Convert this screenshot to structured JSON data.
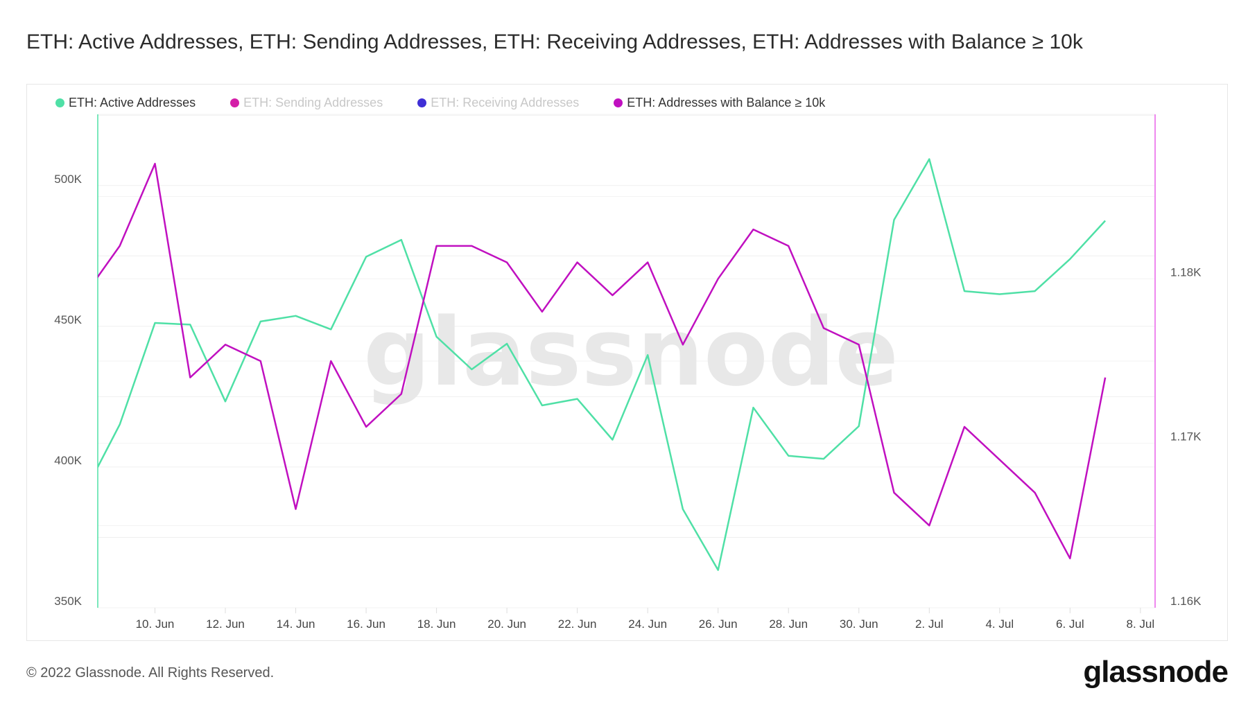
{
  "chart_data": {
    "type": "line",
    "title": "ETH: Active Addresses, ETH: Sending Addresses, ETH: Receiving Addresses, ETH: Addresses with Balance ≥ 10k",
    "legend_position": "top-left",
    "legend": [
      {
        "name": "ETH: Active Addresses",
        "color": "#4fe0a6",
        "visible": true
      },
      {
        "name": "ETH: Sending Addresses",
        "color": "#d41fa8",
        "visible": false
      },
      {
        "name": "ETH: Receiving Addresses",
        "color": "#3f2fd6",
        "visible": false
      },
      {
        "name": "ETH: Addresses with Balance ≥ 10k",
        "color": "#c010c0",
        "visible": true
      }
    ],
    "x": [
      "2022-06-08",
      "2022-06-09",
      "2022-06-10",
      "2022-06-11",
      "2022-06-12",
      "2022-06-13",
      "2022-06-14",
      "2022-06-15",
      "2022-06-16",
      "2022-06-17",
      "2022-06-18",
      "2022-06-19",
      "2022-06-20",
      "2022-06-21",
      "2022-06-22",
      "2022-06-23",
      "2022-06-24",
      "2022-06-25",
      "2022-06-26",
      "2022-06-27",
      "2022-06-28",
      "2022-06-29",
      "2022-06-30",
      "2022-07-01",
      "2022-07-02",
      "2022-07-03",
      "2022-07-04",
      "2022-07-05",
      "2022-07-06",
      "2022-07-07"
    ],
    "xlim": [
      "2022-06-08T09:00",
      "2022-07-08T10:00"
    ],
    "x_ticks": [
      "10. Jun",
      "12. Jun",
      "14. Jun",
      "16. Jun",
      "18. Jun",
      "20. Jun",
      "22. Jun",
      "24. Jun",
      "26. Jun",
      "28. Jun",
      "30. Jun",
      "2. Jul",
      "4. Jul",
      "6. Jul",
      "8. Jul"
    ],
    "series": [
      {
        "name": "ETH: Active Addresses",
        "axis": "left",
        "color": "#4fe0a6",
        "values": [
          391000,
          415100,
          451200,
          450600,
          423300,
          451700,
          453700,
          448900,
          474700,
          480700,
          446300,
          434700,
          443800,
          421900,
          424200,
          409700,
          439800,
          385000,
          363400,
          421100,
          404000,
          402900,
          414500,
          487800,
          509400,
          462500,
          461400,
          462500,
          473900,
          487500
        ]
      },
      {
        "name": "ETH: Addresses with Balance ≥ 10k",
        "axis": "right",
        "color": "#c010c0",
        "values": [
          1179,
          1182,
          1187,
          1174,
          1176,
          1175,
          1166,
          1175,
          1171,
          1173,
          1182,
          1182,
          1181,
          1178,
          1181,
          1179,
          1181,
          1176,
          1180,
          1183,
          1182,
          1177,
          1176,
          1167,
          1165,
          1171,
          1169,
          1167,
          1163,
          1174
        ]
      }
    ],
    "y_left": {
      "ticks": [
        "350K",
        "400K",
        "450K",
        "500K"
      ],
      "tick_values": [
        350000,
        400000,
        450000,
        500000
      ],
      "ylim": [
        350000,
        525300
      ]
    },
    "y_right": {
      "ticks": [
        "1.16K",
        "1.17K",
        "1.18K"
      ],
      "tick_values": [
        1160,
        1170,
        1180
      ],
      "ylim": [
        1160,
        1190
      ]
    },
    "grid": true
  },
  "watermark": "glassnode",
  "footer": {
    "copyright": "© 2022 Glassnode. All Rights Reserved.",
    "logo": "glassnode"
  }
}
